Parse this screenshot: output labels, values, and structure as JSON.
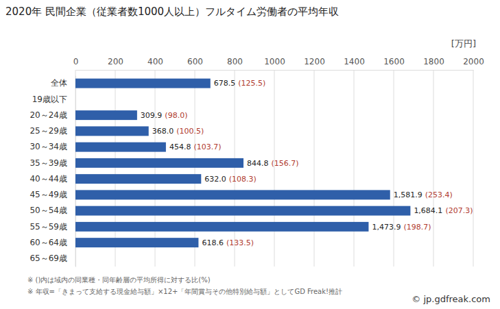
{
  "chart_data": {
    "type": "bar",
    "orientation": "horizontal",
    "title": "2020年 民間企業（従業者数1000人以上）フルタイム労働者の平均年収",
    "unit_label": "[万円]",
    "categories": [
      "全体",
      "19歳以下",
      "20～24歳",
      "25～29歳",
      "30～34歳",
      "35～39歳",
      "40～44歳",
      "45～49歳",
      "50～54歳",
      "55～59歳",
      "60～64歳",
      "65～69歳"
    ],
    "values": [
      678.5,
      null,
      309.9,
      368.0,
      454.8,
      844.8,
      632.0,
      1581.9,
      1684.1,
      1473.9,
      618.6,
      null
    ],
    "value_labels": [
      "678.5",
      null,
      "309.9",
      "368.0",
      "454.8",
      "844.8",
      "632.0",
      "1,581.9",
      "1,684.1",
      "1,473.9",
      "618.6",
      null
    ],
    "ratio_labels": [
      "(125.5)",
      null,
      "(98.0)",
      "(100.5)",
      "(103.7)",
      "(156.7)",
      "(108.3)",
      "(253.4)",
      "(207.3)",
      "(198.7)",
      "(133.5)",
      null
    ],
    "color": "#2f5fa9",
    "xlim": [
      0,
      2000
    ],
    "xticks": [
      0,
      200,
      400,
      600,
      800,
      1000,
      1200,
      1400,
      1600,
      1800,
      2000
    ],
    "grid": true,
    "data_labels": true,
    "annotations": [
      "※ ()内は域内の同業種・同年齢層の平均所得に対する比(%)",
      "※ 年収=「きまって支給する現金給与額」×12+「年間賞与その他特別給与額」としてGD Freak!推計"
    ],
    "credit": "© jp.gdfreak.com"
  }
}
